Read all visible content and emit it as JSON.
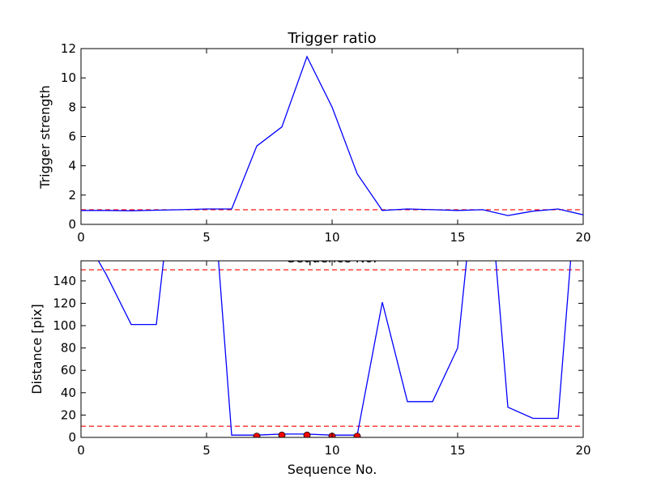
{
  "chart_data": [
    {
      "type": "line",
      "title": "Trigger ratio",
      "xlabel": "Sequence No.",
      "ylabel": "Trigger strength",
      "xlim": [
        0,
        20
      ],
      "ylim": [
        0,
        12
      ],
      "xticks": [
        0,
        5,
        10,
        15,
        20
      ],
      "yticks": [
        0,
        2,
        4,
        6,
        8,
        10,
        12
      ],
      "grid": false,
      "series": [
        {
          "color": "#0000ff",
          "style": "solid",
          "x": [
            0,
            1,
            2,
            3,
            4,
            5,
            6,
            7,
            8,
            9,
            10,
            11,
            12,
            13,
            14,
            15,
            16,
            17,
            18,
            19,
            20
          ],
          "y": [
            0.95,
            0.95,
            0.93,
            0.97,
            1.0,
            1.05,
            1.05,
            5.35,
            6.65,
            11.45,
            8.0,
            3.45,
            0.95,
            1.05,
            1.0,
            0.95,
            1.0,
            0.6,
            0.9,
            1.05,
            0.65
          ]
        }
      ],
      "hlines": [
        {
          "y": 1.0,
          "color": "#ff0000",
          "style": "dashed"
        }
      ]
    },
    {
      "type": "line",
      "title": "",
      "xlabel": "Sequence No.",
      "ylabel": "Distance [pix]",
      "xlim": [
        0,
        20
      ],
      "ylim": [
        0,
        158
      ],
      "xticks": [
        0,
        5,
        10,
        15,
        20
      ],
      "yticks": [
        0,
        20,
        40,
        60,
        80,
        100,
        120,
        140
      ],
      "grid": false,
      "series": [
        {
          "color": "#0000ff",
          "style": "solid",
          "x": [
            0,
            1,
            2,
            3,
            4,
            5,
            6,
            7,
            8,
            9,
            10,
            11,
            12,
            13,
            14,
            15,
            16,
            17,
            18,
            19,
            20
          ],
          "y": [
            185,
            146,
            101,
            101,
            300,
            300,
            2,
            2,
            3,
            3,
            2,
            2,
            121,
            32,
            32,
            80,
            300,
            27,
            17,
            17,
            300
          ]
        },
        {
          "color": "#ff0000",
          "style": "markers",
          "marker": "circle",
          "x": [
            7,
            8,
            9,
            10,
            11
          ],
          "y": [
            1,
            2,
            2,
            1,
            1
          ]
        }
      ],
      "hlines": [
        {
          "y": 150,
          "color": "#ff0000",
          "style": "dashed"
        },
        {
          "y": 10,
          "color": "#ff0000",
          "style": "dashed"
        }
      ]
    }
  ]
}
